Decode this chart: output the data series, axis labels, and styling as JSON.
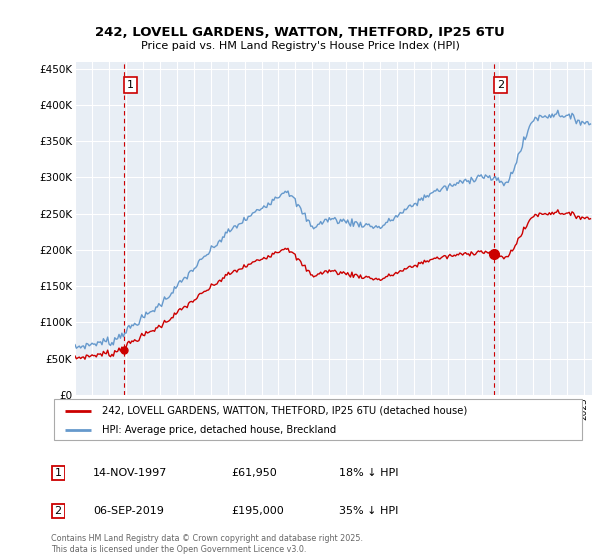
{
  "title_line1": "242, LOVELL GARDENS, WATTON, THETFORD, IP25 6TU",
  "title_line2": "Price paid vs. HM Land Registry's House Price Index (HPI)",
  "legend_label_red": "242, LOVELL GARDENS, WATTON, THETFORD, IP25 6TU (detached house)",
  "legend_label_blue": "HPI: Average price, detached house, Breckland",
  "annotation1_date": "14-NOV-1997",
  "annotation1_price": "£61,950",
  "annotation1_hpi": "18% ↓ HPI",
  "annotation2_date": "06-SEP-2019",
  "annotation2_price": "£195,000",
  "annotation2_hpi": "35% ↓ HPI",
  "purchase1_year": 1997.87,
  "purchase1_price": 61950,
  "purchase2_year": 2019.68,
  "purchase2_price": 195000,
  "copyright_text": "Contains HM Land Registry data © Crown copyright and database right 2025.\nThis data is licensed under the Open Government Licence v3.0.",
  "ylim_min": 0,
  "ylim_max": 460000,
  "xlim_min": 1995,
  "xlim_max": 2025.5,
  "red_color": "#cc0000",
  "blue_color": "#6699cc",
  "background_color": "#ffffff",
  "plot_bg_color": "#e8eef5",
  "grid_color": "#ffffff"
}
